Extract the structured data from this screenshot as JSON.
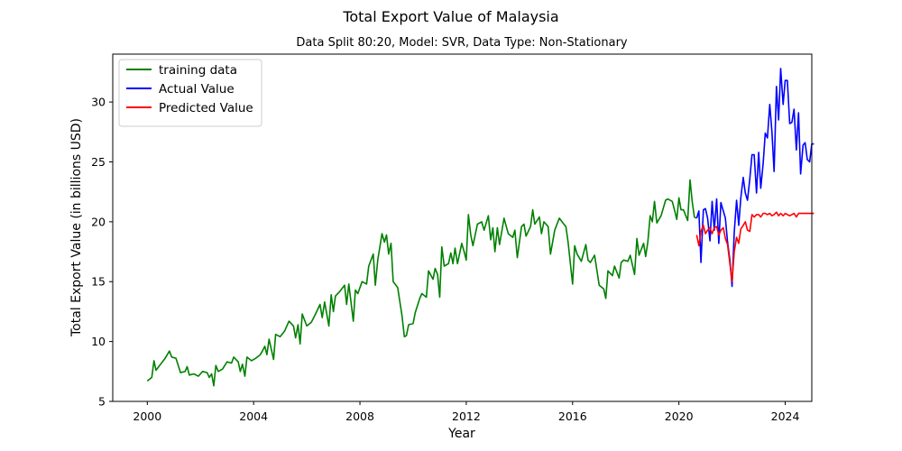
{
  "chart_data": {
    "type": "line",
    "title": "Total Export Value of Malaysia",
    "subtitle": "Data Split 80:20,  Model: SVR,  Data Type: Non-Stationary",
    "xlabel": "Year",
    "ylabel": "Total Export Value (in billions USD)",
    "xlim": [
      1998.7,
      2025.0
    ],
    "ylim": [
      5,
      34
    ],
    "x_ticks": [
      2000,
      2004,
      2008,
      2012,
      2016,
      2020,
      2024
    ],
    "y_ticks": [
      5,
      10,
      15,
      20,
      25,
      30
    ],
    "legend": {
      "placement": "top-left"
    },
    "grid": false,
    "series": [
      {
        "name": "training data",
        "color": "#008000",
        "points": [
          [
            2000.0,
            6.7
          ],
          [
            2000.17,
            7.0
          ],
          [
            2000.25,
            8.4
          ],
          [
            2000.33,
            7.6
          ],
          [
            2000.5,
            8.1
          ],
          [
            2000.67,
            8.6
          ],
          [
            2000.83,
            9.2
          ],
          [
            2000.92,
            8.7
          ],
          [
            2001.08,
            8.6
          ],
          [
            2001.25,
            7.4
          ],
          [
            2001.42,
            7.5
          ],
          [
            2001.5,
            7.9
          ],
          [
            2001.58,
            7.2
          ],
          [
            2001.75,
            7.3
          ],
          [
            2001.92,
            7.1
          ],
          [
            2002.08,
            7.5
          ],
          [
            2002.25,
            7.4
          ],
          [
            2002.33,
            7.0
          ],
          [
            2002.42,
            7.3
          ],
          [
            2002.5,
            6.3
          ],
          [
            2002.58,
            8.0
          ],
          [
            2002.67,
            7.5
          ],
          [
            2002.83,
            7.7
          ],
          [
            2003.0,
            8.3
          ],
          [
            2003.17,
            8.2
          ],
          [
            2003.25,
            8.7
          ],
          [
            2003.42,
            8.3
          ],
          [
            2003.5,
            7.5
          ],
          [
            2003.58,
            8.1
          ],
          [
            2003.67,
            7.1
          ],
          [
            2003.75,
            8.7
          ],
          [
            2003.92,
            8.4
          ],
          [
            2004.08,
            8.6
          ],
          [
            2004.25,
            8.9
          ],
          [
            2004.33,
            9.2
          ],
          [
            2004.42,
            9.6
          ],
          [
            2004.5,
            8.9
          ],
          [
            2004.58,
            10.2
          ],
          [
            2004.75,
            8.5
          ],
          [
            2004.83,
            10.6
          ],
          [
            2005.0,
            10.4
          ],
          [
            2005.17,
            10.9
          ],
          [
            2005.33,
            11.7
          ],
          [
            2005.5,
            11.3
          ],
          [
            2005.58,
            10.3
          ],
          [
            2005.67,
            11.4
          ],
          [
            2005.75,
            9.8
          ],
          [
            2005.83,
            12.3
          ],
          [
            2006.0,
            11.3
          ],
          [
            2006.17,
            11.6
          ],
          [
            2006.33,
            12.3
          ],
          [
            2006.5,
            13.1
          ],
          [
            2006.58,
            12.0
          ],
          [
            2006.67,
            13.3
          ],
          [
            2006.83,
            11.3
          ],
          [
            2006.92,
            13.9
          ],
          [
            2007.0,
            12.5
          ],
          [
            2007.08,
            13.8
          ],
          [
            2007.25,
            14.2
          ],
          [
            2007.42,
            14.7
          ],
          [
            2007.5,
            13.1
          ],
          [
            2007.58,
            14.8
          ],
          [
            2007.75,
            11.7
          ],
          [
            2007.83,
            14.3
          ],
          [
            2007.92,
            14.0
          ],
          [
            2008.08,
            15.0
          ],
          [
            2008.25,
            14.8
          ],
          [
            2008.33,
            16.3
          ],
          [
            2008.5,
            17.3
          ],
          [
            2008.58,
            14.7
          ],
          [
            2008.67,
            16.8
          ],
          [
            2008.83,
            19.0
          ],
          [
            2008.92,
            18.3
          ],
          [
            2009.0,
            18.9
          ],
          [
            2009.08,
            17.3
          ],
          [
            2009.17,
            18.2
          ],
          [
            2009.25,
            15.0
          ],
          [
            2009.42,
            14.5
          ],
          [
            2009.58,
            12.2
          ],
          [
            2009.67,
            10.4
          ],
          [
            2009.75,
            10.5
          ],
          [
            2009.83,
            11.4
          ],
          [
            2010.0,
            11.5
          ],
          [
            2010.08,
            12.4
          ],
          [
            2010.25,
            13.6
          ],
          [
            2010.33,
            14.0
          ],
          [
            2010.5,
            13.7
          ],
          [
            2010.58,
            15.9
          ],
          [
            2010.75,
            15.2
          ],
          [
            2010.83,
            16.1
          ],
          [
            2010.92,
            15.6
          ],
          [
            2011.0,
            13.7
          ],
          [
            2011.08,
            17.9
          ],
          [
            2011.17,
            16.3
          ],
          [
            2011.33,
            16.5
          ],
          [
            2011.42,
            17.4
          ],
          [
            2011.5,
            16.5
          ],
          [
            2011.58,
            17.8
          ],
          [
            2011.67,
            16.5
          ],
          [
            2011.83,
            18.2
          ],
          [
            2011.92,
            17.5
          ],
          [
            2012.0,
            16.8
          ],
          [
            2012.08,
            20.6
          ],
          [
            2012.17,
            18.9
          ],
          [
            2012.25,
            18.0
          ],
          [
            2012.42,
            19.8
          ],
          [
            2012.58,
            20.0
          ],
          [
            2012.67,
            19.3
          ],
          [
            2012.83,
            20.5
          ],
          [
            2012.92,
            18.5
          ],
          [
            2013.0,
            19.5
          ],
          [
            2013.08,
            17.5
          ],
          [
            2013.17,
            19.5
          ],
          [
            2013.25,
            18.1
          ],
          [
            2013.42,
            20.3
          ],
          [
            2013.58,
            19.0
          ],
          [
            2013.75,
            18.7
          ],
          [
            2013.83,
            19.3
          ],
          [
            2013.92,
            17.0
          ],
          [
            2014.08,
            19.6
          ],
          [
            2014.17,
            19.8
          ],
          [
            2014.25,
            18.8
          ],
          [
            2014.42,
            19.6
          ],
          [
            2014.5,
            21.0
          ],
          [
            2014.58,
            19.8
          ],
          [
            2014.75,
            20.4
          ],
          [
            2014.83,
            19.0
          ],
          [
            2014.92,
            20.0
          ],
          [
            2015.08,
            19.6
          ],
          [
            2015.17,
            17.3
          ],
          [
            2015.33,
            19.3
          ],
          [
            2015.5,
            20.3
          ],
          [
            2015.67,
            19.8
          ],
          [
            2015.75,
            19.6
          ],
          [
            2015.83,
            18.3
          ],
          [
            2016.0,
            14.8
          ],
          [
            2016.08,
            18.0
          ],
          [
            2016.17,
            17.3
          ],
          [
            2016.33,
            16.7
          ],
          [
            2016.5,
            18.1
          ],
          [
            2016.58,
            16.8
          ],
          [
            2016.67,
            16.6
          ],
          [
            2016.83,
            17.2
          ],
          [
            2017.0,
            14.7
          ],
          [
            2017.17,
            14.4
          ],
          [
            2017.25,
            13.6
          ],
          [
            2017.33,
            15.9
          ],
          [
            2017.5,
            15.5
          ],
          [
            2017.58,
            16.3
          ],
          [
            2017.75,
            15.3
          ],
          [
            2017.83,
            16.6
          ],
          [
            2017.92,
            16.8
          ],
          [
            2018.08,
            16.7
          ],
          [
            2018.17,
            17.2
          ],
          [
            2018.33,
            15.6
          ],
          [
            2018.42,
            18.6
          ],
          [
            2018.5,
            17.2
          ],
          [
            2018.67,
            18.2
          ],
          [
            2018.75,
            17.1
          ],
          [
            2018.83,
            18.3
          ],
          [
            2018.92,
            20.5
          ],
          [
            2019.0,
            20.0
          ],
          [
            2019.08,
            21.7
          ],
          [
            2019.17,
            19.9
          ],
          [
            2019.33,
            20.5
          ],
          [
            2019.5,
            21.8
          ],
          [
            2019.58,
            21.9
          ],
          [
            2019.75,
            21.7
          ],
          [
            2019.83,
            21.0
          ],
          [
            2019.92,
            20.2
          ],
          [
            2020.0,
            22.0
          ],
          [
            2020.08,
            21.0
          ],
          [
            2020.17,
            21.0
          ],
          [
            2020.33,
            20.1
          ],
          [
            2020.42,
            23.5
          ],
          [
            2020.5,
            21.7
          ],
          [
            2020.58,
            20.4
          ],
          [
            2020.67,
            20.3
          ]
        ]
      },
      {
        "name": "Actual Value",
        "color": "#0000ff",
        "points": [
          [
            2020.67,
            20.3
          ],
          [
            2020.75,
            20.9
          ],
          [
            2020.83,
            16.6
          ],
          [
            2020.92,
            21.0
          ],
          [
            2021.0,
            21.1
          ],
          [
            2021.08,
            20.3
          ],
          [
            2021.17,
            18.4
          ],
          [
            2021.25,
            21.7
          ],
          [
            2021.33,
            19.3
          ],
          [
            2021.42,
            21.9
          ],
          [
            2021.5,
            18.2
          ],
          [
            2021.58,
            21.6
          ],
          [
            2021.67,
            20.9
          ],
          [
            2021.75,
            20.3
          ],
          [
            2021.83,
            18.3
          ],
          [
            2021.92,
            16.8
          ],
          [
            2022.0,
            14.6
          ],
          [
            2022.08,
            19.1
          ],
          [
            2022.17,
            21.8
          ],
          [
            2022.25,
            19.7
          ],
          [
            2022.33,
            22.0
          ],
          [
            2022.42,
            23.7
          ],
          [
            2022.5,
            22.4
          ],
          [
            2022.58,
            21.8
          ],
          [
            2022.67,
            23.6
          ],
          [
            2022.75,
            25.6
          ],
          [
            2022.83,
            25.6
          ],
          [
            2022.92,
            22.4
          ],
          [
            2023.0,
            25.8
          ],
          [
            2023.08,
            22.8
          ],
          [
            2023.17,
            24.9
          ],
          [
            2023.25,
            27.4
          ],
          [
            2023.33,
            27.0
          ],
          [
            2023.42,
            29.8
          ],
          [
            2023.5,
            27.5
          ],
          [
            2023.58,
            24.2
          ],
          [
            2023.67,
            31.3
          ],
          [
            2023.75,
            28.5
          ],
          [
            2023.83,
            32.8
          ],
          [
            2023.92,
            29.8
          ],
          [
            2024.0,
            31.8
          ],
          [
            2024.08,
            31.8
          ],
          [
            2024.17,
            28.2
          ],
          [
            2024.25,
            28.3
          ],
          [
            2024.33,
            29.4
          ],
          [
            2024.42,
            26.0
          ],
          [
            2024.5,
            29.1
          ],
          [
            2024.58,
            24.0
          ],
          [
            2024.67,
            26.4
          ],
          [
            2024.75,
            26.6
          ],
          [
            2024.83,
            25.2
          ],
          [
            2024.92,
            25.0
          ],
          [
            2025.0,
            26.5
          ],
          [
            2025.08,
            26.5
          ]
        ]
      },
      {
        "name": "Predicted Value",
        "color": "#ff0000",
        "points": [
          [
            2020.67,
            18.9
          ],
          [
            2020.75,
            18.0
          ],
          [
            2020.83,
            19.2
          ],
          [
            2020.92,
            19.7
          ],
          [
            2021.0,
            19.0
          ],
          [
            2021.08,
            19.3
          ],
          [
            2021.17,
            19.5
          ],
          [
            2021.25,
            19.0
          ],
          [
            2021.33,
            19.5
          ],
          [
            2021.42,
            19.6
          ],
          [
            2021.5,
            18.9
          ],
          [
            2021.58,
            19.3
          ],
          [
            2021.67,
            19.5
          ],
          [
            2021.75,
            18.6
          ],
          [
            2021.83,
            18.1
          ],
          [
            2021.92,
            16.5
          ],
          [
            2022.0,
            15.0
          ],
          [
            2022.08,
            17.5
          ],
          [
            2022.17,
            18.7
          ],
          [
            2022.25,
            18.2
          ],
          [
            2022.33,
            19.4
          ],
          [
            2022.42,
            19.7
          ],
          [
            2022.5,
            20.0
          ],
          [
            2022.58,
            19.3
          ],
          [
            2022.67,
            19.2
          ],
          [
            2022.75,
            20.6
          ],
          [
            2022.83,
            20.4
          ],
          [
            2022.92,
            20.6
          ],
          [
            2023.0,
            20.6
          ],
          [
            2023.08,
            20.4
          ],
          [
            2023.17,
            20.7
          ],
          [
            2023.25,
            20.7
          ],
          [
            2023.33,
            20.6
          ],
          [
            2023.42,
            20.7
          ],
          [
            2023.5,
            20.5
          ],
          [
            2023.58,
            20.6
          ],
          [
            2023.67,
            20.8
          ],
          [
            2023.75,
            20.5
          ],
          [
            2023.83,
            20.7
          ],
          [
            2023.92,
            20.5
          ],
          [
            2024.0,
            20.7
          ],
          [
            2024.08,
            20.6
          ],
          [
            2024.17,
            20.5
          ],
          [
            2024.25,
            20.6
          ],
          [
            2024.33,
            20.7
          ],
          [
            2024.42,
            20.4
          ],
          [
            2024.5,
            20.7
          ],
          [
            2024.58,
            20.7
          ],
          [
            2024.67,
            20.7
          ],
          [
            2024.75,
            20.7
          ],
          [
            2024.83,
            20.7
          ],
          [
            2024.92,
            20.7
          ],
          [
            2025.0,
            20.7
          ],
          [
            2025.08,
            20.7
          ]
        ]
      }
    ]
  }
}
